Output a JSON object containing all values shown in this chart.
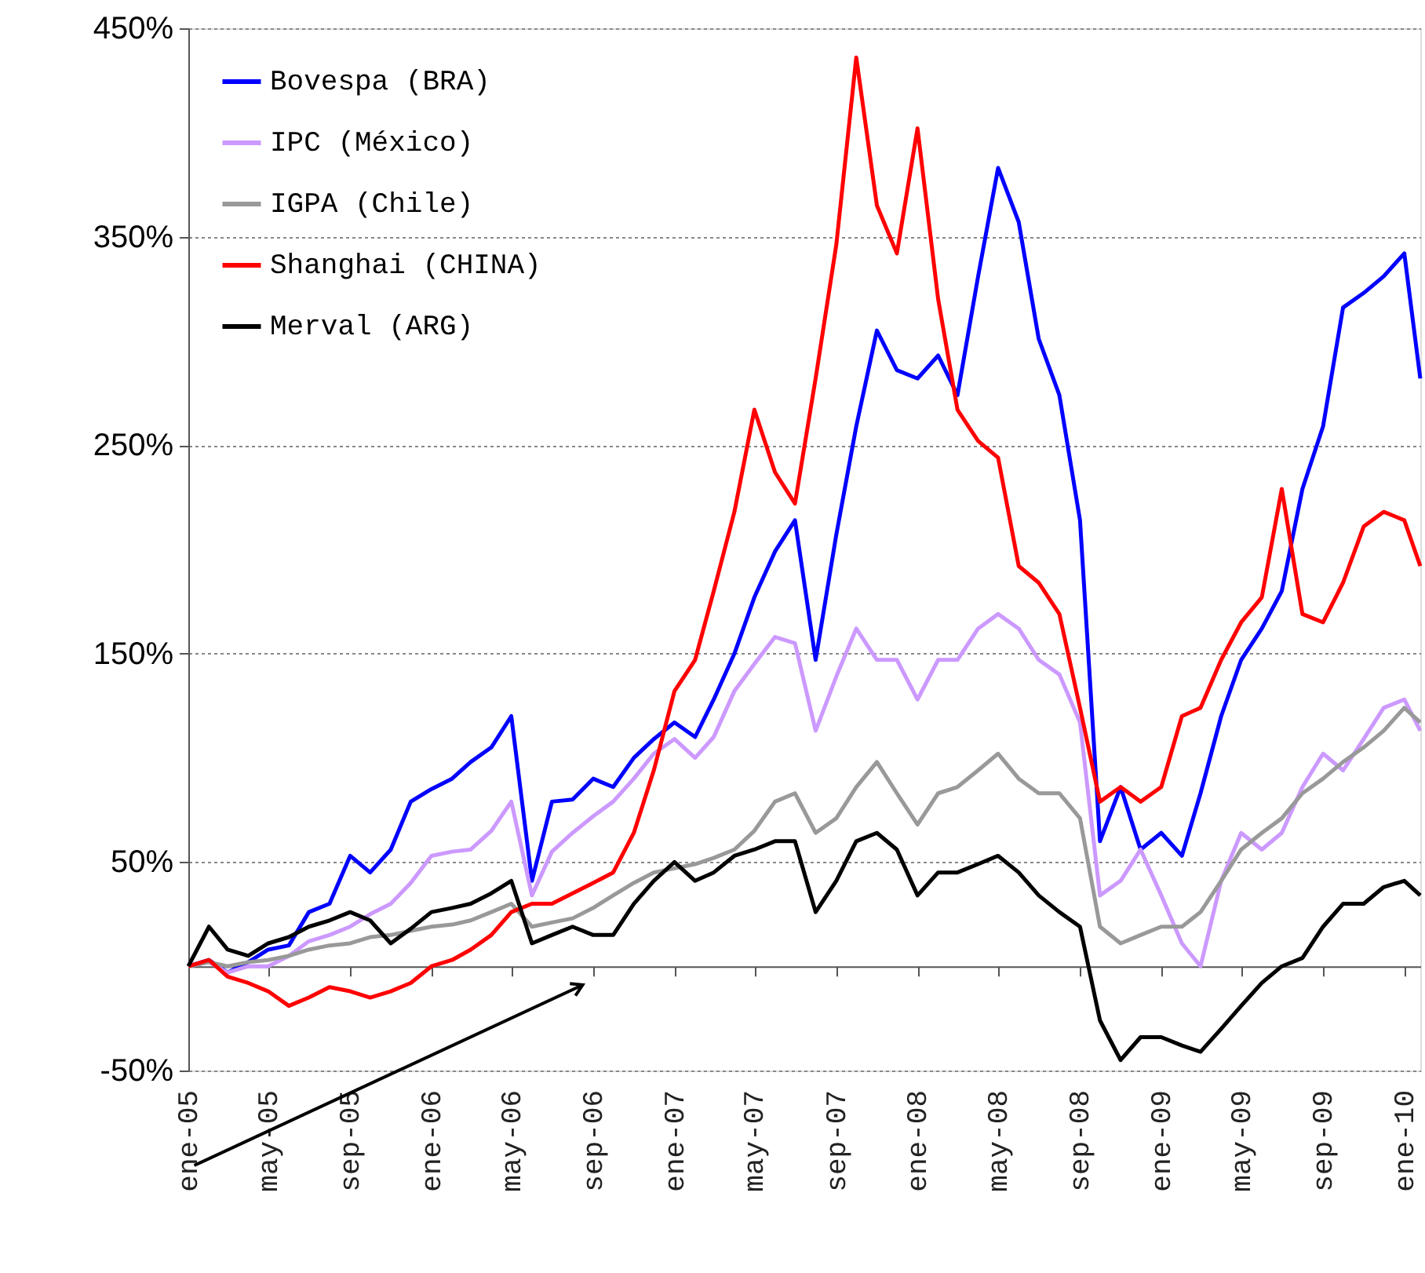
{
  "chart_data": {
    "type": "line",
    "x": [
      "2005-01",
      "2005-02",
      "2005-03",
      "2005-04",
      "2005-05",
      "2005-06",
      "2005-07",
      "2005-08",
      "2005-09",
      "2005-10",
      "2005-11",
      "2005-12",
      "2006-01",
      "2006-02",
      "2006-03",
      "2006-04",
      "2006-05",
      "2006-06",
      "2006-07",
      "2006-08",
      "2006-09",
      "2006-10",
      "2006-11",
      "2006-12",
      "2007-01",
      "2007-02",
      "2007-03",
      "2007-04",
      "2007-05",
      "2007-06",
      "2007-07",
      "2007-08",
      "2007-09",
      "2007-10",
      "2007-11",
      "2007-12",
      "2008-01",
      "2008-02",
      "2008-03",
      "2008-04",
      "2008-05",
      "2008-06",
      "2008-07",
      "2008-08",
      "2008-09",
      "2008-10",
      "2008-11",
      "2008-12",
      "2009-01",
      "2009-02",
      "2009-03",
      "2009-04",
      "2009-05",
      "2009-06",
      "2009-07",
      "2009-08",
      "2009-09",
      "2009-10",
      "2009-11",
      "2009-12",
      "2010-01",
      "2010-01-25"
    ],
    "series": [
      {
        "name": "Bovespa (BRA)",
        "color": "#0000ff",
        "values": [
          0,
          3,
          -3,
          2,
          8,
          10,
          26,
          30,
          53,
          45,
          56,
          79,
          85,
          90,
          98,
          105,
          120,
          41,
          79,
          80,
          90,
          86,
          100,
          109,
          117,
          110,
          128,
          150,
          177,
          199,
          214,
          147,
          207,
          259,
          305,
          286,
          282,
          293,
          274,
          331,
          383,
          357,
          301,
          274,
          214,
          60,
          86,
          56,
          64,
          53,
          83,
          120,
          147,
          162,
          180,
          229,
          259,
          316,
          323,
          331,
          342,
          282
        ]
      },
      {
        "name": "IPC (México)",
        "color": "#cc99ff",
        "values": [
          0,
          2,
          -3,
          0,
          0,
          5,
          12,
          15,
          19,
          25,
          30,
          40,
          53,
          55,
          56,
          65,
          79,
          34,
          55,
          64,
          72,
          79,
          90,
          102,
          109,
          100,
          110,
          132,
          145,
          158,
          155,
          113,
          139,
          162,
          147,
          147,
          128,
          147,
          147,
          162,
          169,
          162,
          147,
          140,
          117,
          34,
          41,
          56,
          34,
          11,
          0,
          41,
          64,
          56,
          64,
          86,
          102,
          94,
          109,
          124,
          128,
          113
        ]
      },
      {
        "name": "IGPA (Chile)",
        "color": "#999999",
        "values": [
          0,
          2,
          0,
          2,
          3,
          5,
          8,
          10,
          11,
          14,
          15,
          17,
          19,
          20,
          22,
          26,
          30,
          19,
          21,
          23,
          28,
          34,
          40,
          45,
          47,
          49,
          52,
          56,
          65,
          79,
          83,
          64,
          71,
          86,
          98,
          83,
          68,
          83,
          86,
          94,
          102,
          90,
          83,
          83,
          71,
          19,
          11,
          15,
          19,
          19,
          26,
          41,
          56,
          64,
          71,
          83,
          90,
          98,
          105,
          113,
          124,
          117
        ]
      },
      {
        "name": "Shanghai (CHINA)",
        "color": "#ff0000",
        "values": [
          0,
          3,
          -5,
          -8,
          -12,
          -19,
          -15,
          -10,
          -12,
          -15,
          -12,
          -8,
          0,
          3,
          8,
          15,
          26,
          30,
          30,
          35,
          40,
          45,
          64,
          94,
          132,
          147,
          180,
          218,
          267,
          237,
          222,
          282,
          346,
          436,
          365,
          342,
          402,
          320,
          267,
          252,
          244,
          192,
          184,
          169,
          124,
          79,
          86,
          79,
          86,
          120,
          124,
          147,
          165,
          177,
          229,
          169,
          165,
          184,
          211,
          218,
          214,
          192
        ]
      },
      {
        "name": "Merval (ARG)",
        "color": "#000000",
        "values": [
          0,
          19,
          8,
          5,
          11,
          14,
          19,
          22,
          26,
          22,
          11,
          18,
          26,
          28,
          30,
          35,
          41,
          11,
          15,
          19,
          15,
          15,
          30,
          41,
          50,
          41,
          45,
          53,
          56,
          60,
          60,
          26,
          41,
          60,
          64,
          56,
          34,
          45,
          45,
          49,
          53,
          45,
          34,
          26,
          19,
          -26,
          -45,
          -34,
          -34,
          -38,
          -41,
          -30,
          -19,
          -8,
          0,
          4,
          19,
          30,
          30,
          38,
          41,
          34
        ]
      }
    ],
    "xlim": [
      "2005-01",
      "2010-01-25"
    ],
    "xticks": [
      {
        "value": "2005-01",
        "label": "ene-05"
      },
      {
        "value": "2005-05",
        "label": "may-05"
      },
      {
        "value": "2005-09",
        "label": "sep-05"
      },
      {
        "value": "2006-01",
        "label": "ene-06"
      },
      {
        "value": "2006-05",
        "label": "may-06"
      },
      {
        "value": "2006-09",
        "label": "sep-06"
      },
      {
        "value": "2007-01",
        "label": "ene-07"
      },
      {
        "value": "2007-05",
        "label": "may-07"
      },
      {
        "value": "2007-09",
        "label": "sep-07"
      },
      {
        "value": "2008-01",
        "label": "ene-08"
      },
      {
        "value": "2008-05",
        "label": "may-08"
      },
      {
        "value": "2008-09",
        "label": "sep-08"
      },
      {
        "value": "2009-01",
        "label": "ene-09"
      },
      {
        "value": "2009-05",
        "label": "may-09"
      },
      {
        "value": "2009-09",
        "label": "sep-09"
      },
      {
        "value": "2010-01",
        "label": "ene-10"
      }
    ],
    "ylim": [
      -50,
      450
    ],
    "yticks": [
      {
        "value": -50,
        "label": "-50%"
      },
      {
        "value": 50,
        "label": "50%"
      },
      {
        "value": 150,
        "label": "150%"
      },
      {
        "value": 250,
        "label": "250%"
      },
      {
        "value": 350,
        "label": "350%"
      },
      {
        "value": 450,
        "label": "450%"
      }
    ],
    "grid": "y",
    "legend": "top left",
    "line_style": "solid",
    "marker": "none"
  }
}
